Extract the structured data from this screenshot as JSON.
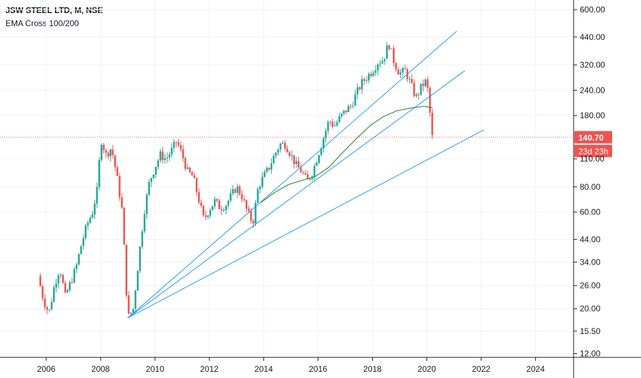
{
  "header": {
    "title": "JSW STEEL LTD, M, NSE",
    "indicator": "EMA Cross 100/200"
  },
  "chart_data": {
    "type": "candlestick",
    "price_scale": "log",
    "ylim": [
      11.5,
      670
    ],
    "xlim": [
      2004.3,
      2025.4
    ],
    "y_ticks": [
      "12.00",
      "15.50",
      "20.00",
      "26.00",
      "34.00",
      "44.00",
      "60.00",
      "80.00",
      "110.00",
      "180.00",
      "240.00",
      "320.00",
      "440.00",
      "600.00"
    ],
    "x_ticks": [
      "2006",
      "2008",
      "2010",
      "2012",
      "2014",
      "2016",
      "2018",
      "2020",
      "2022",
      "2024"
    ],
    "last_price": {
      "label": "140.70",
      "value": 140.7
    },
    "countdown": "23d 23h",
    "colors": {
      "up": "#26a69a",
      "down": "#ef5350",
      "trend": "#2196f3",
      "ema": "#388e3c",
      "price_line": "#ef5350"
    },
    "grid": true,
    "price_path": [
      [
        2005.7,
        29
      ],
      [
        2005.9,
        22
      ],
      [
        2006.1,
        19
      ],
      [
        2006.3,
        26
      ],
      [
        2006.5,
        32
      ],
      [
        2006.7,
        23
      ],
      [
        2006.9,
        27
      ],
      [
        2007.1,
        32
      ],
      [
        2007.3,
        42
      ],
      [
        2007.5,
        52
      ],
      [
        2007.7,
        60
      ],
      [
        2007.9,
        80
      ],
      [
        2008.0,
        140
      ],
      [
        2008.2,
        115
      ],
      [
        2008.4,
        125
      ],
      [
        2008.6,
        90
      ],
      [
        2008.8,
        60
      ],
      [
        2009.0,
        18
      ],
      [
        2009.2,
        20
      ],
      [
        2009.4,
        35
      ],
      [
        2009.6,
        60
      ],
      [
        2009.8,
        85
      ],
      [
        2010.0,
        100
      ],
      [
        2010.2,
        115
      ],
      [
        2010.4,
        110
      ],
      [
        2010.6,
        120
      ],
      [
        2010.8,
        135
      ],
      [
        2011.0,
        115
      ],
      [
        2011.2,
        95
      ],
      [
        2011.4,
        90
      ],
      [
        2011.6,
        70
      ],
      [
        2011.8,
        55
      ],
      [
        2012.0,
        62
      ],
      [
        2012.2,
        68
      ],
      [
        2012.4,
        63
      ],
      [
        2012.6,
        65
      ],
      [
        2012.8,
        72
      ],
      [
        2013.0,
        80
      ],
      [
        2013.2,
        72
      ],
      [
        2013.4,
        60
      ],
      [
        2013.6,
        53
      ],
      [
        2013.8,
        80
      ],
      [
        2014.0,
        90
      ],
      [
        2014.2,
        100
      ],
      [
        2014.4,
        115
      ],
      [
        2014.6,
        130
      ],
      [
        2014.8,
        130
      ],
      [
        2015.0,
        115
      ],
      [
        2015.2,
        102
      ],
      [
        2015.4,
        95
      ],
      [
        2015.6,
        85
      ],
      [
        2015.8,
        95
      ],
      [
        2016.0,
        115
      ],
      [
        2016.2,
        140
      ],
      [
        2016.4,
        170
      ],
      [
        2016.6,
        160
      ],
      [
        2016.8,
        175
      ],
      [
        2017.0,
        190
      ],
      [
        2017.2,
        200
      ],
      [
        2017.4,
        230
      ],
      [
        2017.6,
        260
      ],
      [
        2017.8,
        280
      ],
      [
        2018.0,
        300
      ],
      [
        2018.2,
        330
      ],
      [
        2018.4,
        340
      ],
      [
        2018.6,
        410
      ],
      [
        2018.8,
        330
      ],
      [
        2019.0,
        290
      ],
      [
        2019.2,
        300
      ],
      [
        2019.4,
        260
      ],
      [
        2019.6,
        220
      ],
      [
        2019.8,
        250
      ],
      [
        2020.0,
        270
      ],
      [
        2020.2,
        140.7
      ]
    ],
    "ema_series": [
      [
        2013.9,
        67
      ],
      [
        2014.4,
        75
      ],
      [
        2014.9,
        82
      ],
      [
        2015.4,
        86
      ],
      [
        2015.9,
        90
      ],
      [
        2016.4,
        100
      ],
      [
        2016.9,
        118
      ],
      [
        2017.4,
        138
      ],
      [
        2017.9,
        160
      ],
      [
        2018.4,
        178
      ],
      [
        2018.9,
        190
      ],
      [
        2019.4,
        196
      ],
      [
        2019.9,
        200
      ],
      [
        2020.2,
        197
      ]
    ],
    "trendlines": [
      [
        [
          2009.0,
          18
        ],
        [
          2021.1,
          470
        ]
      ],
      [
        [
          2009.0,
          18
        ],
        [
          2021.4,
          300
        ]
      ],
      [
        [
          2009.0,
          18
        ],
        [
          2022.1,
          153
        ]
      ]
    ]
  }
}
